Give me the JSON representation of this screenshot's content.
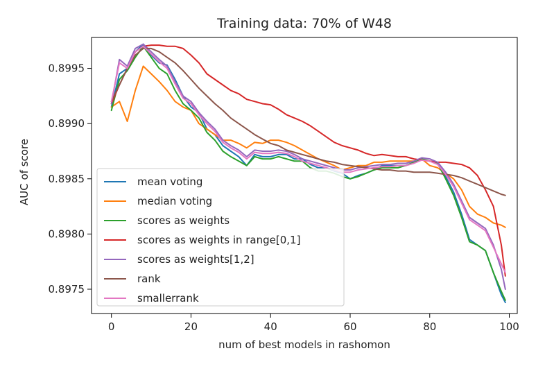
{
  "chart_data": {
    "type": "line",
    "title": "Training data: 70% of W48",
    "xlabel": "num of best models in rashomon",
    "ylabel": "AUC of score",
    "xlim": [
      -5,
      102
    ],
    "ylim": [
      0.89728,
      0.89978
    ],
    "xticks": [
      0,
      20,
      40,
      60,
      80,
      100
    ],
    "xtick_labels": [
      "0",
      "20",
      "40",
      "60",
      "80",
      "100"
    ],
    "yticks": [
      0.8975,
      0.898,
      0.8985,
      0.899,
      0.8995
    ],
    "ytick_labels": [
      "0.8975",
      "0.8980",
      "0.8985",
      "0.8990",
      "0.8995"
    ],
    "grid": false,
    "legend_position": "lower-left",
    "series": [
      {
        "name": "mean voting",
        "color": "#1f77b4",
        "x": [
          0,
          2,
          4,
          6,
          8,
          10,
          12,
          14,
          16,
          18,
          20,
          22,
          24,
          26,
          28,
          30,
          32,
          34,
          36,
          38,
          40,
          42,
          44,
          46,
          48,
          50,
          52,
          54,
          56,
          58,
          60,
          62,
          64,
          66,
          68,
          70,
          72,
          74,
          76,
          78,
          80,
          82,
          84,
          86,
          88,
          90,
          92,
          94,
          96,
          98,
          99
        ],
        "y": [
          0.89915,
          0.89945,
          0.8995,
          0.89965,
          0.89972,
          0.89962,
          0.89955,
          0.89953,
          0.8994,
          0.89925,
          0.89915,
          0.8991,
          0.89895,
          0.8989,
          0.8988,
          0.89875,
          0.8987,
          0.89862,
          0.89872,
          0.8987,
          0.8987,
          0.89872,
          0.89872,
          0.89868,
          0.89868,
          0.89863,
          0.8986,
          0.8986,
          0.89857,
          0.89855,
          0.8985,
          0.89853,
          0.89855,
          0.89858,
          0.89862,
          0.89862,
          0.89862,
          0.89862,
          0.89865,
          0.89868,
          0.89866,
          0.89864,
          0.89852,
          0.89838,
          0.89818,
          0.89795,
          0.8979,
          0.89785,
          0.89765,
          0.89745,
          0.89738
        ]
      },
      {
        "name": "median voting",
        "color": "#ff7f0e",
        "x": [
          0,
          2,
          4,
          6,
          8,
          10,
          12,
          14,
          16,
          18,
          20,
          22,
          24,
          26,
          28,
          30,
          32,
          34,
          36,
          38,
          40,
          42,
          44,
          46,
          48,
          50,
          52,
          54,
          56,
          58,
          60,
          62,
          64,
          66,
          68,
          70,
          72,
          74,
          76,
          78,
          80,
          82,
          84,
          86,
          88,
          90,
          92,
          94,
          96,
          98,
          99
        ],
        "y": [
          0.89915,
          0.8992,
          0.89902,
          0.8993,
          0.89952,
          0.89945,
          0.89938,
          0.8993,
          0.8992,
          0.89915,
          0.89912,
          0.899,
          0.89895,
          0.8989,
          0.89885,
          0.89885,
          0.89882,
          0.89878,
          0.89883,
          0.89882,
          0.89885,
          0.89885,
          0.89883,
          0.8988,
          0.89876,
          0.89872,
          0.89868,
          0.89865,
          0.89862,
          0.89858,
          0.8986,
          0.89862,
          0.89862,
          0.89865,
          0.89865,
          0.89866,
          0.89866,
          0.89866,
          0.89866,
          0.89868,
          0.89862,
          0.8986,
          0.89855,
          0.8985,
          0.8984,
          0.89825,
          0.89818,
          0.89815,
          0.8981,
          0.89808,
          0.89806
        ]
      },
      {
        "name": "scores as weights",
        "color": "#2ca02c",
        "x": [
          0,
          2,
          4,
          6,
          8,
          10,
          12,
          14,
          16,
          18,
          20,
          22,
          24,
          26,
          28,
          30,
          32,
          34,
          36,
          38,
          40,
          42,
          44,
          46,
          48,
          50,
          52,
          54,
          56,
          58,
          60,
          62,
          64,
          66,
          68,
          70,
          72,
          74,
          76,
          78,
          80,
          82,
          84,
          86,
          88,
          90,
          92,
          94,
          96,
          98,
          99
        ],
        "y": [
          0.89912,
          0.8994,
          0.89948,
          0.8996,
          0.8997,
          0.8996,
          0.8995,
          0.89945,
          0.8993,
          0.89918,
          0.89912,
          0.89905,
          0.89892,
          0.89885,
          0.89875,
          0.8987,
          0.89866,
          0.89862,
          0.8987,
          0.89868,
          0.89868,
          0.8987,
          0.89868,
          0.89866,
          0.89866,
          0.8986,
          0.89857,
          0.89857,
          0.89855,
          0.89852,
          0.8985,
          0.89852,
          0.89855,
          0.89858,
          0.8986,
          0.8986,
          0.8986,
          0.89862,
          0.89865,
          0.89868,
          0.89866,
          0.89864,
          0.8985,
          0.89835,
          0.89815,
          0.89793,
          0.8979,
          0.89785,
          0.89765,
          0.89748,
          0.8974
        ]
      },
      {
        "name": "scores as weights in range[0,1]",
        "color": "#d62728",
        "x": [
          0,
          2,
          4,
          6,
          8,
          10,
          12,
          14,
          16,
          18,
          20,
          22,
          24,
          26,
          28,
          30,
          32,
          34,
          36,
          38,
          40,
          42,
          44,
          46,
          48,
          50,
          52,
          54,
          56,
          58,
          60,
          62,
          64,
          66,
          68,
          70,
          72,
          74,
          76,
          78,
          80,
          82,
          84,
          86,
          88,
          90,
          92,
          94,
          96,
          98,
          99
        ],
        "y": [
          0.89918,
          0.89935,
          0.8995,
          0.89965,
          0.8997,
          0.89971,
          0.89971,
          0.8997,
          0.8997,
          0.89968,
          0.89962,
          0.89955,
          0.89945,
          0.8994,
          0.89935,
          0.8993,
          0.89927,
          0.89922,
          0.8992,
          0.89918,
          0.89917,
          0.89913,
          0.89908,
          0.89905,
          0.89902,
          0.89898,
          0.89893,
          0.89888,
          0.89883,
          0.8988,
          0.89878,
          0.89876,
          0.89873,
          0.89871,
          0.89872,
          0.89871,
          0.8987,
          0.8987,
          0.89868,
          0.89867,
          0.89866,
          0.89865,
          0.89865,
          0.89864,
          0.89863,
          0.8986,
          0.89853,
          0.8984,
          0.89825,
          0.8979,
          0.89762
        ]
      },
      {
        "name": "scores as weights[1,2]",
        "color": "#9467bd",
        "x": [
          0,
          2,
          4,
          6,
          8,
          10,
          12,
          14,
          16,
          18,
          20,
          22,
          24,
          26,
          28,
          30,
          32,
          34,
          36,
          38,
          40,
          42,
          44,
          46,
          48,
          50,
          52,
          54,
          56,
          58,
          60,
          62,
          64,
          66,
          68,
          70,
          72,
          74,
          76,
          78,
          80,
          82,
          84,
          86,
          88,
          90,
          92,
          94,
          96,
          98,
          99
        ],
        "y": [
          0.89918,
          0.89958,
          0.89952,
          0.89968,
          0.89972,
          0.89965,
          0.89958,
          0.89952,
          0.89938,
          0.89925,
          0.8992,
          0.8991,
          0.89902,
          0.89895,
          0.89885,
          0.8988,
          0.89876,
          0.8987,
          0.89876,
          0.89875,
          0.89875,
          0.89876,
          0.89875,
          0.89872,
          0.89868,
          0.89866,
          0.89864,
          0.89862,
          0.8986,
          0.89858,
          0.89858,
          0.8986,
          0.89861,
          0.89862,
          0.89863,
          0.89863,
          0.89864,
          0.89864,
          0.89866,
          0.89869,
          0.89868,
          0.89865,
          0.89856,
          0.89845,
          0.8983,
          0.89815,
          0.8981,
          0.89805,
          0.8979,
          0.89768,
          0.8975
        ]
      },
      {
        "name": "rank",
        "color": "#8c564b",
        "x": [
          0,
          2,
          4,
          6,
          8,
          10,
          12,
          14,
          16,
          18,
          20,
          22,
          24,
          26,
          28,
          30,
          32,
          34,
          36,
          38,
          40,
          42,
          44,
          46,
          48,
          50,
          52,
          54,
          56,
          58,
          60,
          62,
          64,
          66,
          68,
          70,
          72,
          74,
          76,
          78,
          80,
          82,
          84,
          86,
          88,
          90,
          92,
          94,
          96,
          98,
          99
        ],
        "y": [
          0.8992,
          0.89935,
          0.8995,
          0.89962,
          0.89968,
          0.89968,
          0.89965,
          0.8996,
          0.89955,
          0.89948,
          0.8994,
          0.89932,
          0.89925,
          0.89918,
          0.89912,
          0.89905,
          0.899,
          0.89895,
          0.8989,
          0.89886,
          0.89882,
          0.8988,
          0.89876,
          0.89874,
          0.89872,
          0.8987,
          0.89868,
          0.89866,
          0.89865,
          0.89863,
          0.89862,
          0.89861,
          0.8986,
          0.89859,
          0.89858,
          0.89858,
          0.89857,
          0.89857,
          0.89856,
          0.89856,
          0.89856,
          0.89855,
          0.89854,
          0.89853,
          0.89851,
          0.89848,
          0.89845,
          0.89842,
          0.89839,
          0.89836,
          0.89835
        ]
      },
      {
        "name": "smallerrank",
        "color": "#e377c2",
        "x": [
          0,
          2,
          4,
          6,
          8,
          10,
          12,
          14,
          16,
          18,
          20,
          22,
          24,
          26,
          28,
          30,
          32,
          34,
          36,
          38,
          40,
          42,
          44,
          46,
          48,
          50,
          52,
          54,
          56,
          58,
          60,
          62,
          64,
          66,
          68,
          70,
          72,
          74,
          76,
          78,
          80,
          82,
          84,
          86,
          88,
          90,
          92,
          94,
          96,
          98,
          99
        ],
        "y": [
          0.8992,
          0.89955,
          0.8995,
          0.89965,
          0.8997,
          0.89963,
          0.89956,
          0.8995,
          0.89936,
          0.89923,
          0.89918,
          0.89908,
          0.899,
          0.89893,
          0.89883,
          0.89878,
          0.89874,
          0.89868,
          0.89874,
          0.89873,
          0.89873,
          0.89874,
          0.89873,
          0.8987,
          0.89866,
          0.89864,
          0.89862,
          0.8986,
          0.89858,
          0.89856,
          0.89856,
          0.89858,
          0.89859,
          0.8986,
          0.89861,
          0.89861,
          0.89862,
          0.89862,
          0.89864,
          0.89867,
          0.89866,
          0.89863,
          0.89854,
          0.89843,
          0.89828,
          0.89813,
          0.89808,
          0.89803,
          0.89788,
          0.89773,
          0.89765
        ]
      }
    ]
  }
}
